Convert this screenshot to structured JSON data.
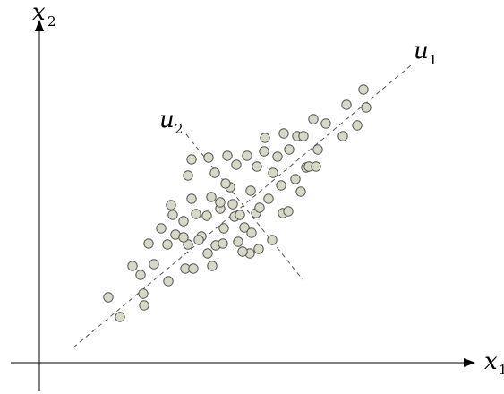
{
  "labels": {
    "x_axis": "x",
    "x_axis_sub": "1",
    "y_axis": "x",
    "y_axis_sub": "2",
    "u1": "u",
    "u1_sub": "1",
    "u2": "u",
    "u2_sub": "2"
  },
  "colors": {
    "point_fill": "#d8d8c8",
    "point_stroke": "#555555",
    "axis": "#000000",
    "dashed_line": "#555555"
  },
  "chart_data": {
    "type": "scatter",
    "x": [
      121,
      134,
      148,
      160,
      161,
      157,
      166,
      172,
      188,
      187,
      193,
      196,
      191,
      205,
      207,
      210,
      214,
      216,
      219,
      225,
      231,
      233,
      236,
      237,
      240,
      241,
      246,
      249,
      250,
      254,
      257,
      260,
      262,
      264,
      266,
      268,
      273,
      276,
      279,
      280,
      281,
      286,
      287,
      289,
      290,
      295,
      296,
      300,
      304,
      305,
      310,
      314,
      316,
      317,
      322,
      323,
      330,
      332,
      336,
      339,
      342,
      345,
      350,
      353,
      355,
      364,
      383,
      387,
      399,
      406,
      409,
      210,
      222,
      246,
      271,
      252,
      232,
      205,
      180,
      214
    ],
    "y": [
      332,
      354,
      297,
      328,
      341,
      307,
      272,
      295,
      314,
      273,
      240,
      262,
      229,
      247,
      300,
      273,
      222,
      300,
      239,
      264,
      241,
      176,
      220,
      297,
      193,
      274,
      233,
      272,
      255,
      174,
      209,
      228,
      242,
      184,
      270,
      240,
      254,
      174,
      283,
      213,
      260,
      238,
      186,
      278,
      232,
      169,
      154,
      222,
      268,
      193,
      175,
      207,
      238,
      149,
      236,
      167,
      200,
      152,
      214,
      152,
      187,
      186,
      133,
      186,
      167,
      138,
      152,
      117,
      140,
      100,
      120,
      196,
      268,
      226,
      281,
      205,
      283,
      265,
      255,
      178
    ]
  }
}
